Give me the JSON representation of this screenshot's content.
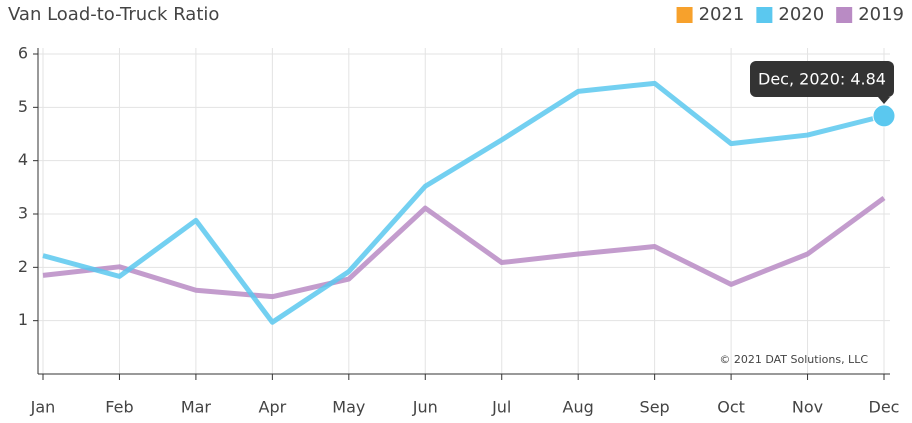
{
  "chart_data": {
    "type": "line",
    "title": "Van Load-to-Truck Ratio",
    "categories": [
      "Jan",
      "Feb",
      "Mar",
      "Apr",
      "May",
      "Jun",
      "Jul",
      "Aug",
      "Sep",
      "Oct",
      "Nov",
      "Dec"
    ],
    "series": [
      {
        "name": "2021",
        "color": "#f7a12c",
        "values": [
          null,
          null,
          null,
          null,
          null,
          null,
          null,
          null,
          null,
          null,
          null,
          null
        ]
      },
      {
        "name": "2020",
        "color": "#5bc8ef",
        "values": [
          2.22,
          1.83,
          2.88,
          0.97,
          1.92,
          3.52,
          4.39,
          5.3,
          5.45,
          4.32,
          4.48,
          4.84
        ]
      },
      {
        "name": "2019",
        "color": "#b98bc4",
        "values": [
          1.85,
          2.01,
          1.57,
          1.45,
          1.78,
          3.11,
          2.09,
          2.25,
          2.39,
          1.68,
          2.25,
          3.3
        ]
      }
    ],
    "ylim": [
      0,
      6
    ],
    "yticks": [
      1,
      2,
      3,
      4,
      5,
      6
    ],
    "grid": true,
    "tooltip": "Dec, 2020: 4.84",
    "credit": "© 2021 DAT Solutions, LLC"
  }
}
